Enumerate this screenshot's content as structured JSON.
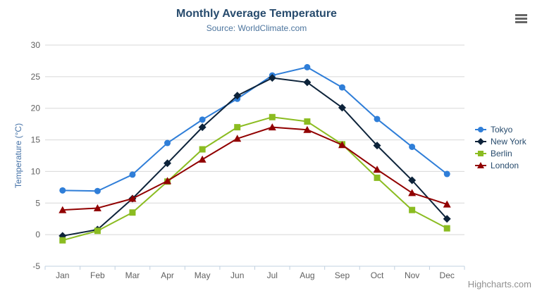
{
  "chart_data": {
    "type": "line",
    "title": "Monthly Average Temperature",
    "subtitle": "Source: WorldClimate.com",
    "ylabel": "Temperature (°C)",
    "ylim": [
      -5,
      30
    ],
    "ytick_step": 5,
    "grid": true,
    "legend_position": "right",
    "categories": [
      "Jan",
      "Feb",
      "Mar",
      "Apr",
      "May",
      "Jun",
      "Jul",
      "Aug",
      "Sep",
      "Oct",
      "Nov",
      "Dec"
    ],
    "series": [
      {
        "name": "Tokyo",
        "color": "#2f7ed8",
        "marker": "circle",
        "values": [
          7.0,
          6.9,
          9.5,
          14.5,
          18.2,
          21.5,
          25.2,
          26.5,
          23.3,
          18.3,
          13.9,
          9.6
        ]
      },
      {
        "name": "New York",
        "color": "#0d233a",
        "marker": "diamond",
        "values": [
          -0.2,
          0.8,
          5.7,
          11.3,
          17.0,
          22.0,
          24.8,
          24.1,
          20.1,
          14.1,
          8.6,
          2.5
        ]
      },
      {
        "name": "Berlin",
        "color": "#8bbc21",
        "marker": "square",
        "values": [
          -0.9,
          0.6,
          3.5,
          8.4,
          13.5,
          17.0,
          18.6,
          17.9,
          14.3,
          9.0,
          3.9,
          1.0
        ]
      },
      {
        "name": "London",
        "color": "#910000",
        "marker": "triangle",
        "values": [
          3.9,
          4.2,
          5.7,
          8.5,
          11.9,
          15.2,
          17.0,
          16.6,
          14.2,
          10.3,
          6.6,
          4.8
        ]
      }
    ],
    "credit": "Highcharts.com"
  },
  "colors": {
    "title": "#274b6d",
    "subtitle": "#4d759e",
    "axis_title": "#4572a7",
    "tick_label": "#606060",
    "grid_line": "#d8d8d8",
    "axis_line": "#c0d0e0",
    "legend_text": "#274b6d",
    "credit_text": "#909090",
    "menu_icon": "#666666",
    "background": "#ffffff"
  }
}
